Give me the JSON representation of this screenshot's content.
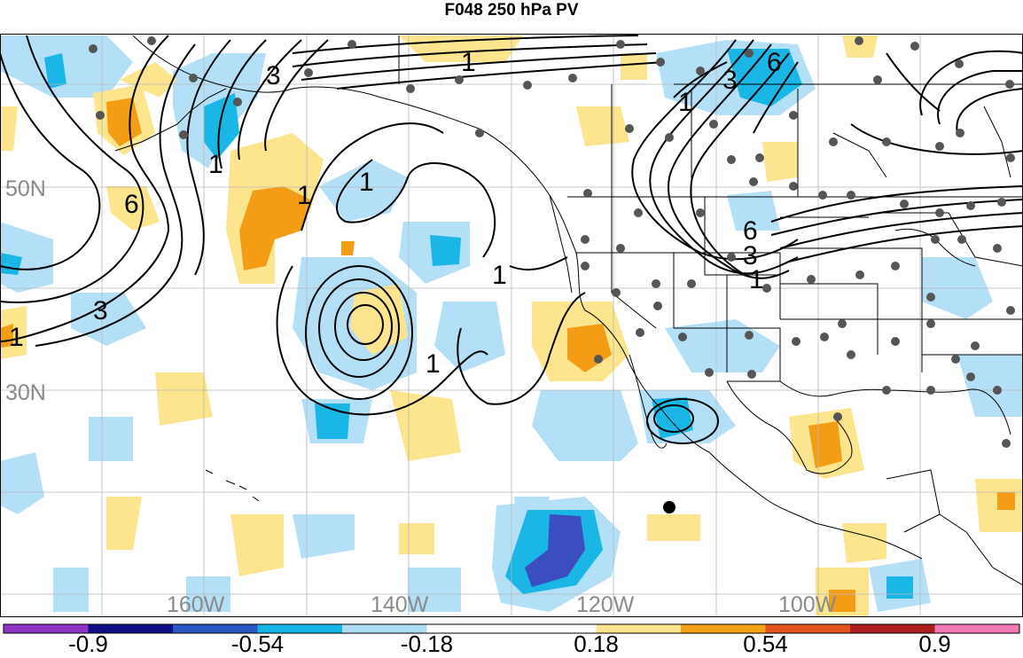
{
  "title": "F048 250 hPa PV",
  "lat_labels": [
    "50N",
    "30N"
  ],
  "lon_labels": [
    "160W",
    "140W",
    "120W",
    "100W"
  ],
  "contour_labels": [
    "1",
    "3",
    "6"
  ],
  "colorbar": {
    "colors": [
      "#8d34c4",
      "#0d0d86",
      "#2a55c2",
      "#14b5e6",
      "#aeddf6",
      "#ffffff",
      "#ffffff",
      "#fce58c",
      "#f6a216",
      "#e2541a",
      "#ad1f1f",
      "#f07ab4"
    ],
    "labels": [
      "-0.9",
      "-0.54",
      "-0.18",
      "0.18",
      "0.54",
      "0.9"
    ]
  },
  "colors": {
    "neg_light": "#b3e0f7",
    "neg_mid": "#19b6e6",
    "neg_dark": "#3b4dbf",
    "pos_light": "#fce58c",
    "pos_mid": "#f49c14",
    "contour": "#000000",
    "station": "#555555",
    "grid": "#b8b8b8",
    "label_gray": "#8a8a8a"
  }
}
